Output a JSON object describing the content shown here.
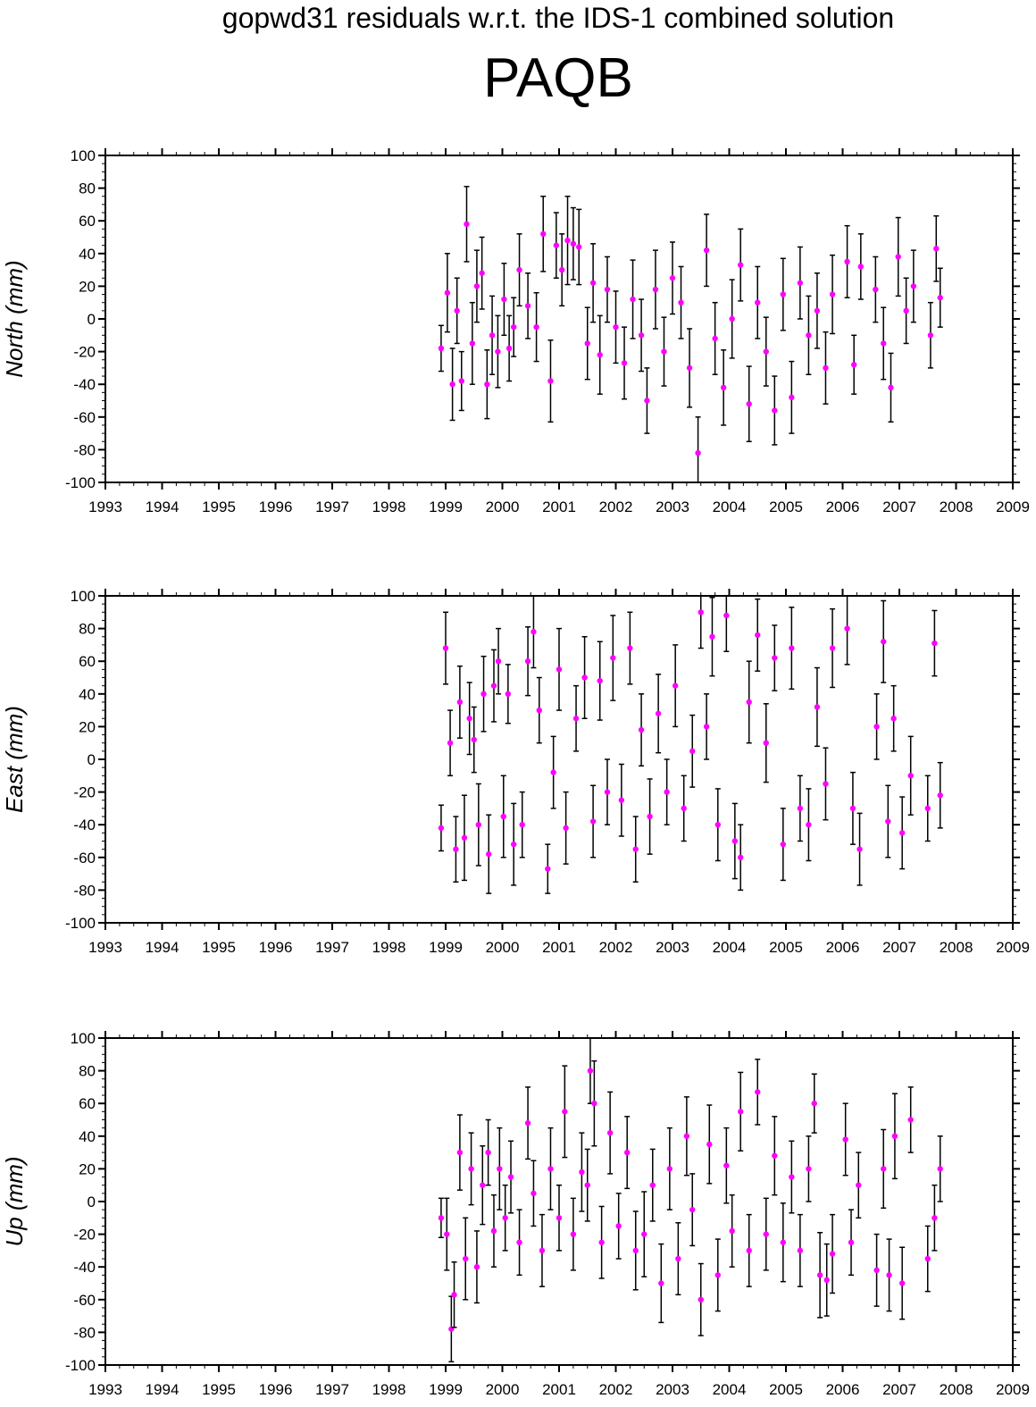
{
  "page": {
    "subtitle": "gopwd31 residuals w.r.t. the IDS-1 combined solution",
    "station": "PAQB"
  },
  "colors": {
    "point": "#ff00ff",
    "error_bar": "#000000",
    "axis": "#000000"
  },
  "chart_data": [
    {
      "type": "scatter",
      "panel": "north",
      "title": "",
      "xlabel": "",
      "ylabel": "North (mm)",
      "xlim": [
        1993,
        2009
      ],
      "ylim": [
        -100,
        100
      ],
      "xticks": [
        "1993",
        "1994",
        "1995",
        "1996",
        "1997",
        "1998",
        "1999",
        "2000",
        "2001",
        "2002",
        "2003",
        "2004",
        "2005",
        "2006",
        "2007",
        "2008",
        "2009"
      ],
      "yticks": [
        "100",
        "80",
        "60",
        "40",
        "20",
        "0",
        "-20",
        "-40",
        "-60",
        "-80",
        "-100"
      ],
      "grid": false,
      "legend": "none",
      "error_bars": true,
      "series": [
        {
          "x": [
            1998.92,
            1999.03,
            1999.12,
            1999.2,
            1999.28,
            1999.37,
            1999.47,
            1999.55,
            1999.64,
            1999.73,
            1999.82,
            1999.92,
            2000.03,
            2000.12,
            2000.2,
            2000.3,
            2000.45,
            2000.6,
            2000.72,
            2000.85,
            2000.95,
            2001.05,
            2001.15,
            2001.25,
            2001.35,
            2001.5,
            2001.6,
            2001.72,
            2001.85,
            2002.0,
            2002.15,
            2002.3,
            2002.45,
            2002.55,
            2002.7,
            2002.85,
            2003.0,
            2003.15,
            2003.3,
            2003.45,
            2003.6,
            2003.75,
            2003.9,
            2004.05,
            2004.2,
            2004.35,
            2004.5,
            2004.65,
            2004.8,
            2004.95,
            2005.1,
            2005.25,
            2005.4,
            2005.55,
            2005.7,
            2005.82,
            2006.08,
            2006.2,
            2006.32,
            2006.58,
            2006.72,
            2006.85,
            2006.98,
            2007.12,
            2007.25,
            2007.55,
            2007.65,
            2007.72
          ],
          "y": [
            -18,
            16,
            -40,
            5,
            -38,
            58,
            -15,
            20,
            28,
            -40,
            -10,
            -20,
            12,
            -18,
            -5,
            30,
            8,
            -5,
            52,
            -38,
            45,
            30,
            48,
            46,
            44,
            -15,
            22,
            -22,
            18,
            -5,
            -27,
            12,
            -10,
            -50,
            18,
            -20,
            25,
            10,
            -30,
            -82,
            42,
            -12,
            -42,
            0,
            33,
            -52,
            10,
            -20,
            -56,
            15,
            -48,
            22,
            -10,
            5,
            -30,
            15,
            35,
            -28,
            32,
            18,
            -15,
            -42,
            38,
            5,
            20,
            -10,
            43,
            13
          ],
          "err": [
            14,
            24,
            22,
            20,
            18,
            23,
            25,
            22,
            22,
            21,
            24,
            22,
            22,
            20,
            18,
            22,
            20,
            21,
            23,
            25,
            20,
            22,
            27,
            22,
            23,
            22,
            24,
            24,
            20,
            22,
            22,
            24,
            22,
            20,
            24,
            21,
            22,
            22,
            24,
            22,
            22,
            22,
            23,
            24,
            22,
            23,
            22,
            21,
            21,
            22,
            22,
            22,
            24,
            23,
            22,
            24,
            22,
            18,
            20,
            20,
            22,
            21,
            24,
            20,
            22,
            20,
            20,
            18
          ]
        }
      ]
    },
    {
      "type": "scatter",
      "panel": "east",
      "title": "",
      "xlabel": "",
      "ylabel": "East (mm)",
      "xlim": [
        1993,
        2009
      ],
      "ylim": [
        -100,
        100
      ],
      "xticks": [
        "1993",
        "1994",
        "1995",
        "1996",
        "1997",
        "1998",
        "1999",
        "2000",
        "2001",
        "2002",
        "2003",
        "2004",
        "2005",
        "2006",
        "2007",
        "2008",
        "2009"
      ],
      "yticks": [
        "100",
        "80",
        "60",
        "40",
        "20",
        "0",
        "-20",
        "-40",
        "-60",
        "-80",
        "-100"
      ],
      "grid": false,
      "legend": "none",
      "error_bars": true,
      "series": [
        {
          "x": [
            1998.92,
            1999.0,
            1999.08,
            1999.18,
            1999.25,
            1999.33,
            1999.42,
            1999.5,
            1999.58,
            1999.67,
            1999.76,
            1999.85,
            1999.93,
            2000.02,
            2000.1,
            2000.2,
            2000.35,
            2000.45,
            2000.55,
            2000.65,
            2000.8,
            2000.9,
            2001.0,
            2001.12,
            2001.3,
            2001.45,
            2001.6,
            2001.72,
            2001.85,
            2001.95,
            2002.1,
            2002.25,
            2002.35,
            2002.45,
            2002.6,
            2002.75,
            2002.9,
            2003.05,
            2003.2,
            2003.35,
            2003.5,
            2003.6,
            2003.7,
            2003.8,
            2003.95,
            2004.1,
            2004.2,
            2004.35,
            2004.5,
            2004.65,
            2004.8,
            2004.95,
            2005.1,
            2005.25,
            2005.4,
            2005.55,
            2005.7,
            2005.82,
            2006.08,
            2006.18,
            2006.3,
            2006.6,
            2006.72,
            2006.8,
            2006.9,
            2007.05,
            2007.2,
            2007.5,
            2007.62,
            2007.72
          ],
          "y": [
            -42,
            68,
            10,
            -55,
            35,
            -48,
            25,
            12,
            -40,
            40,
            -58,
            45,
            60,
            -35,
            40,
            -52,
            -40,
            60,
            78,
            30,
            -67,
            -8,
            55,
            -42,
            25,
            50,
            -38,
            48,
            -20,
            62,
            -25,
            68,
            -55,
            18,
            -35,
            28,
            -20,
            45,
            -30,
            5,
            90,
            20,
            75,
            -40,
            88,
            -50,
            -60,
            35,
            76,
            10,
            62,
            -52,
            68,
            -30,
            -40,
            32,
            -15,
            68,
            80,
            -30,
            -55,
            20,
            72,
            -38,
            25,
            -45,
            -10,
            -30,
            71,
            -22
          ],
          "err": [
            14,
            22,
            20,
            20,
            22,
            26,
            22,
            20,
            25,
            23,
            24,
            22,
            20,
            25,
            18,
            25,
            20,
            21,
            22,
            20,
            15,
            22,
            25,
            22,
            20,
            25,
            22,
            24,
            20,
            26,
            22,
            22,
            20,
            22,
            23,
            24,
            20,
            25,
            20,
            22,
            22,
            20,
            24,
            22,
            22,
            23,
            20,
            25,
            22,
            24,
            20,
            22,
            25,
            20,
            22,
            24,
            22,
            24,
            22,
            22,
            22,
            20,
            25,
            22,
            20,
            22,
            24,
            20,
            20,
            20
          ]
        }
      ]
    },
    {
      "type": "scatter",
      "panel": "up",
      "title": "",
      "xlabel": "",
      "ylabel": "Up (mm)",
      "xlim": [
        1993,
        2009
      ],
      "ylim": [
        -100,
        100
      ],
      "xticks": [
        "1993",
        "1994",
        "1995",
        "1996",
        "1997",
        "1998",
        "1999",
        "2000",
        "2001",
        "2002",
        "2003",
        "2004",
        "2005",
        "2006",
        "2007",
        "2008",
        "2009"
      ],
      "yticks": [
        "100",
        "80",
        "60",
        "40",
        "20",
        "0",
        "-20",
        "-40",
        "-60",
        "-80",
        "-100"
      ],
      "grid": false,
      "legend": "none",
      "error_bars": true,
      "series": [
        {
          "x": [
            1998.92,
            1999.02,
            1999.1,
            1999.15,
            1999.25,
            1999.35,
            1999.45,
            1999.55,
            1999.65,
            1999.75,
            1999.85,
            1999.95,
            2000.05,
            2000.15,
            2000.3,
            2000.45,
            2000.55,
            2000.7,
            2000.85,
            2001.0,
            2001.1,
            2001.25,
            2001.4,
            2001.5,
            2001.55,
            2001.62,
            2001.75,
            2001.9,
            2002.05,
            2002.2,
            2002.35,
            2002.5,
            2002.65,
            2002.8,
            2002.95,
            2003.1,
            2003.25,
            2003.35,
            2003.5,
            2003.65,
            2003.8,
            2003.95,
            2004.05,
            2004.2,
            2004.35,
            2004.5,
            2004.65,
            2004.8,
            2004.95,
            2005.1,
            2005.25,
            2005.4,
            2005.5,
            2005.6,
            2005.72,
            2005.82,
            2006.05,
            2006.15,
            2006.28,
            2006.6,
            2006.72,
            2006.82,
            2006.92,
            2007.05,
            2007.2,
            2007.5,
            2007.62,
            2007.72
          ],
          "y": [
            -10,
            -20,
            -78,
            -57,
            30,
            -35,
            20,
            -40,
            10,
            30,
            -18,
            20,
            -10,
            15,
            -25,
            48,
            5,
            -30,
            20,
            -10,
            55,
            -20,
            18,
            10,
            80,
            60,
            -25,
            42,
            -15,
            30,
            -30,
            -20,
            10,
            -50,
            20,
            -35,
            40,
            -5,
            -60,
            35,
            -45,
            22,
            -18,
            55,
            -30,
            67,
            -20,
            28,
            -25,
            15,
            -30,
            20,
            60,
            -45,
            -48,
            -32,
            38,
            -25,
            10,
            -42,
            20,
            -45,
            40,
            -50,
            50,
            -35,
            -10,
            20
          ],
          "err": [
            12,
            22,
            20,
            20,
            23,
            25,
            22,
            22,
            24,
            20,
            22,
            25,
            20,
            22,
            20,
            22,
            20,
            22,
            25,
            20,
            28,
            22,
            24,
            22,
            20,
            26,
            22,
            25,
            20,
            22,
            24,
            26,
            22,
            24,
            25,
            22,
            24,
            22,
            22,
            24,
            22,
            23,
            22,
            24,
            22,
            20,
            22,
            24,
            24,
            22,
            22,
            20,
            18,
            26,
            22,
            24,
            22,
            20,
            20,
            22,
            24,
            22,
            26,
            22,
            20,
            20,
            20,
            20
          ]
        }
      ]
    }
  ]
}
